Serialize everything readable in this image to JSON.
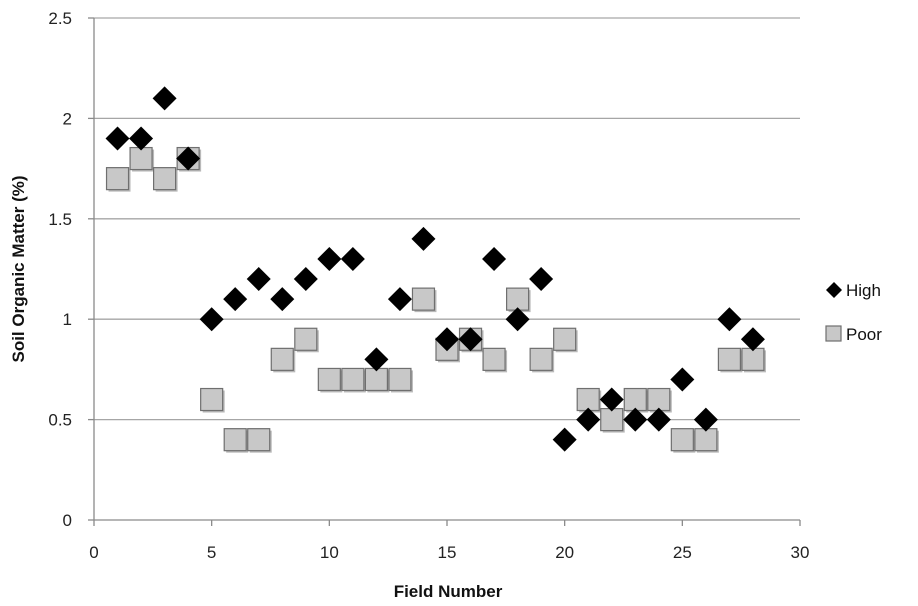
{
  "chart_data": {
    "type": "scatter",
    "title": "",
    "xlabel": "Field Number",
    "ylabel": "Soil Organic Matter (%)",
    "xlim": [
      0,
      30
    ],
    "ylim": [
      0,
      2.5
    ],
    "xticks": [
      "0",
      "5",
      "10",
      "15",
      "20",
      "25",
      "30"
    ],
    "yticks": [
      "0",
      "0.5",
      "1",
      "1.5",
      "2",
      "2.5"
    ],
    "grid": "horizontal",
    "legend_position": "right",
    "series": [
      {
        "name": "High",
        "marker": "diamond",
        "color": "#000000",
        "points": [
          [
            1,
            1.9
          ],
          [
            2,
            1.9
          ],
          [
            3,
            2.1
          ],
          [
            4,
            1.8
          ],
          [
            5,
            1.0
          ],
          [
            6,
            1.1
          ],
          [
            7,
            1.2
          ],
          [
            8,
            1.1
          ],
          [
            9,
            1.2
          ],
          [
            10,
            1.3
          ],
          [
            11,
            1.3
          ],
          [
            12,
            0.8
          ],
          [
            13,
            1.1
          ],
          [
            14,
            1.4
          ],
          [
            15,
            0.9
          ],
          [
            16,
            0.9
          ],
          [
            17,
            1.3
          ],
          [
            18,
            1.0
          ],
          [
            19,
            1.2
          ],
          [
            20,
            0.4
          ],
          [
            21,
            0.5
          ],
          [
            22,
            0.6
          ],
          [
            23,
            0.5
          ],
          [
            24,
            0.5
          ],
          [
            25,
            0.7
          ],
          [
            26,
            0.5
          ],
          [
            27,
            1.0
          ],
          [
            28,
            0.9
          ]
        ]
      },
      {
        "name": "Poor",
        "marker": "square",
        "color": "#c8c8c8",
        "points": [
          [
            1,
            1.7
          ],
          [
            2,
            1.8
          ],
          [
            3,
            1.7
          ],
          [
            4,
            1.8
          ],
          [
            5,
            0.6
          ],
          [
            6,
            0.4
          ],
          [
            7,
            0.4
          ],
          [
            8,
            0.8
          ],
          [
            9,
            0.9
          ],
          [
            10,
            0.7
          ],
          [
            11,
            0.7
          ],
          [
            12,
            0.7
          ],
          [
            13,
            0.7
          ],
          [
            14,
            1.1
          ],
          [
            15,
            0.85
          ],
          [
            16,
            0.9
          ],
          [
            17,
            0.8
          ],
          [
            18,
            1.1
          ],
          [
            19,
            0.8
          ],
          [
            20,
            0.9
          ],
          [
            21,
            0.6
          ],
          [
            22,
            0.5
          ],
          [
            23,
            0.6
          ],
          [
            24,
            0.6
          ],
          [
            25,
            0.4
          ],
          [
            26,
            0.4
          ],
          [
            27,
            0.8
          ],
          [
            28,
            0.8
          ]
        ]
      }
    ]
  }
}
